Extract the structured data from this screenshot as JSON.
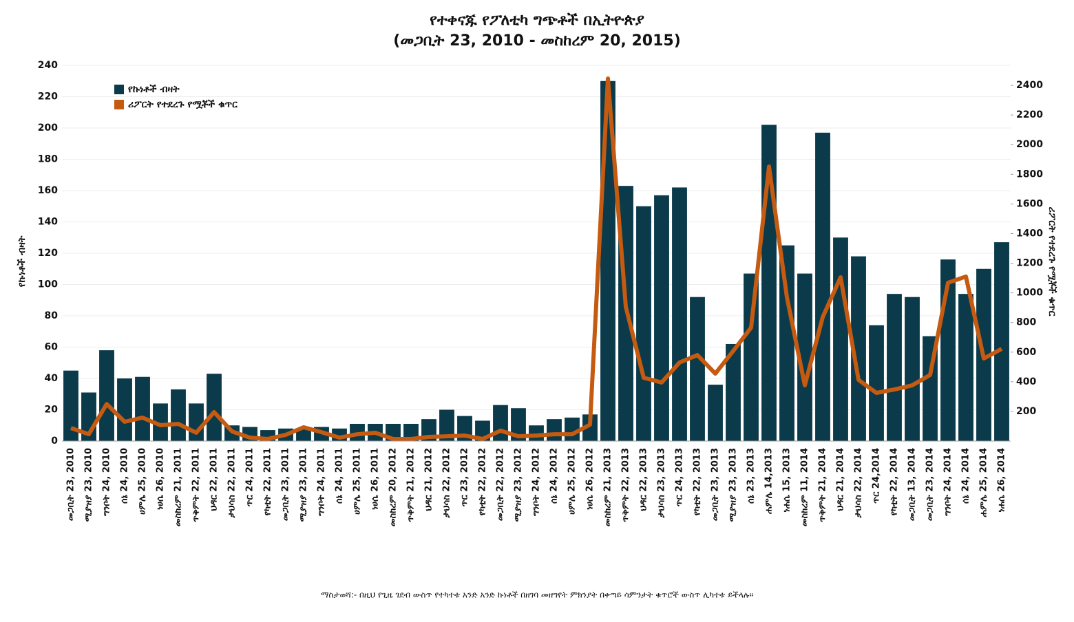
{
  "chart_data": {
    "type": "bar_line",
    "title": "የተቀናጁ የፖለቲካ ግጭቶች በኢትዮጵያ",
    "subtitle": "(መጋቢት 23, 2010 - መስከረም 20, 2015)",
    "y_label": "የኩነቶች ብዛት",
    "y2_label": "ሪፖርት የተደረጉ የሟቾች ቁጥር",
    "note": "ማስታወሻ:- በዚህ የጊዜ ገደብ ውስጥ የተካተቱ አንድ አንድ ኩነቶች በዘገባ መዘግየት ምክንያት በቀጣይ ሳምንታት ቁጥሮች ውስጥ ሊካተቱ ይችላሉ።",
    "categories": [
      "መጋቢት 23, 2010",
      "ሚያዝያ 23, 2010",
      "ግንቦት 24, 2010",
      "ሰኔ 24, 2010",
      "ሀምሌ 25, 2010",
      "ነሀሴ 26, 2010",
      "መስከረም 21, 2011",
      "ጥቅምት 22, 2011",
      "ህዳር 22, 2011",
      "ታህሳስ 22, 2011",
      "ጥር 24, 2011",
      "የካቲት 22, 2011",
      "መጋቢት 23, 2011",
      "ሚያዝያ 23, 2011",
      "ግንቦት 24, 2011",
      "ሰኔ 24, 2011",
      "ሀምሌ 25, 2011",
      "ነሀሴ 26, 2011",
      "መስከረም 20, 2012",
      "ጥቅምት 21, 2012",
      "ህዳር 21, 2012",
      "ታህሳስ 22, 2012",
      "ጥር 23, 2012",
      "የካቲት 22, 2012",
      "መጋቢት 22, 2012",
      "ሚያዝያ 23, 2012",
      "ግንቦት 24, 2012",
      "ሰኔ 24, 2012",
      "ሀምሌ 25, 2012",
      "ነሀሴ 26, 2012",
      "መስከረም 21, 2013",
      "ጥቅምት 22, 2013",
      "ህዳር 22, 2013",
      "ታህሳስ 23, 2013",
      "ጥር 24, 2013",
      "የካቲት 22, 2013",
      "መጋቢት 23, 2013",
      "ሚያዝያ 23, 2013",
      "ሰኔ 23, 2013",
      "ሐምሌ 14,2013",
      "ነሐሴ 15, 2013",
      "መስከረም 11, 2014",
      "ጥቅምት 21, 2014",
      "ህዳር 21, 2014",
      "ታህሳስ 22, 2014",
      "ጥር 24,2014",
      "የካቲት 22, 2014",
      "መጋቢት 13, 2014",
      "መጋቢት 23, 2014",
      "ግንቦት 24, 2014",
      "ሰኔ 24, 2014",
      "ሐምሌ 25, 2014",
      "ነሐሴ 26, 2014"
    ],
    "series": [
      {
        "name": "የኩነቶች ብዛት",
        "color": "#0b3a4a",
        "kind": "bar",
        "values": [
          45,
          31,
          58,
          40,
          41,
          24,
          33,
          24,
          43,
          10,
          9,
          7,
          8,
          8,
          9,
          8,
          11,
          11,
          11,
          11,
          14,
          20,
          16,
          13,
          23,
          21,
          10,
          14,
          15,
          17,
          230,
          163,
          150,
          157,
          162,
          92,
          36,
          62,
          107,
          202,
          125,
          107,
          197,
          130,
          118,
          74,
          94,
          92,
          67,
          116,
          94,
          110,
          127
        ]
      },
      {
        "name": "ሪፖርት የተደረጉ የሟቾች ቁጥር",
        "color": "#c55a11",
        "kind": "line",
        "axis": "y2",
        "values": [
          88,
          46,
          250,
          130,
          158,
          107,
          116,
          56,
          195,
          65,
          23,
          14,
          42,
          93,
          60,
          23,
          46,
          56,
          14,
          14,
          28,
          32,
          37,
          14,
          70,
          32,
          37,
          46,
          46,
          111,
          2446,
          905,
          427,
          395,
          530,
          580,
          455,
          608,
          766,
          1852,
          970,
          376,
          836,
          1105,
          413,
          325,
          348,
          376,
          446,
          1068,
          1110,
          557,
          622
        ]
      }
    ],
    "ylim": [
      0,
      240
    ],
    "yticks": [
      0,
      20,
      40,
      60,
      80,
      100,
      120,
      140,
      160,
      180,
      200,
      220,
      240
    ],
    "y2lim": [
      0,
      2535
    ],
    "y2ticks": [
      200,
      400,
      600,
      800,
      1000,
      1200,
      1400,
      1600,
      1800,
      2000,
      2200,
      2400
    ],
    "grid": true,
    "legend": "upper left"
  }
}
